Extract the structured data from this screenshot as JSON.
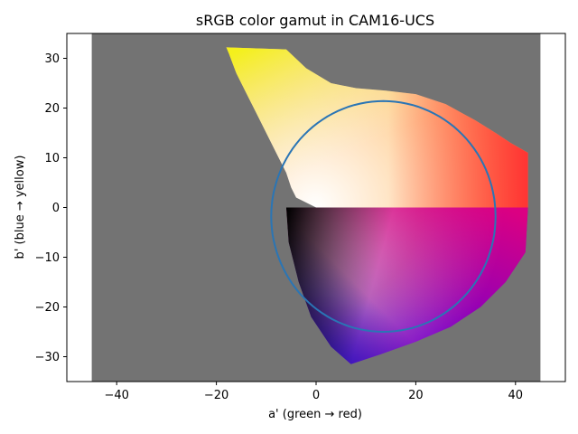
{
  "chart_data": {
    "type": "scatter",
    "title": "sRGB color gamut in CAM16-UCS",
    "xlabel": "a' (green → red)",
    "ylabel": "b' (blue → yellow)",
    "xlim": [
      -50,
      50
    ],
    "ylim": [
      -35,
      35
    ],
    "xticks": [
      -40,
      -20,
      0,
      20,
      40
    ],
    "yticks": [
      -30,
      -20,
      -10,
      0,
      10,
      20,
      30
    ],
    "grid": false,
    "background_region": {
      "x": [
        -45,
        45
      ],
      "y": [
        -35,
        35
      ],
      "color": "#737373"
    },
    "gamut_upper_outline": {
      "x": [
        -18,
        -6,
        -2,
        3,
        8,
        14,
        20,
        26,
        32,
        36,
        39,
        42.5,
        42.5,
        0,
        -4,
        -5,
        -6,
        -8,
        -10,
        -12,
        -14,
        -16,
        -17.5
      ],
      "y": [
        32.2,
        31.8,
        28,
        25,
        24,
        23.5,
        22.8,
        20.8,
        17.5,
        15,
        13,
        11,
        0,
        0,
        2,
        4,
        7,
        11,
        15,
        19,
        23,
        27,
        31
      ]
    },
    "gamut_lower_outline": {
      "x": [
        -6,
        0,
        15,
        27,
        36,
        42,
        42.5,
        42,
        38,
        33,
        27,
        20,
        13,
        7,
        3,
        -1,
        -3.5,
        -5.5
      ],
      "y": [
        0,
        0,
        0,
        0,
        0,
        0,
        0,
        -9,
        -15,
        -20,
        -24,
        -27,
        -29.5,
        -31.5,
        -28,
        -22,
        -15,
        -7
      ]
    },
    "series": [
      {
        "center": [
          13.5,
          -1.8
        ],
        "radii": [
          22.5,
          23.2
        ],
        "color": "#2a75b5",
        "points": 120
      }
    ],
    "hue_colors": {
      "yellow": "#f4f01c",
      "orange": "#ffad4a",
      "red": "#ff3333",
      "magenta": "#e6007a",
      "purple": "#8a1fd6",
      "blue": "#1a0fb8",
      "black": "#000000",
      "white": "#ffffff",
      "light_yellow": "#f6ffd0"
    }
  }
}
